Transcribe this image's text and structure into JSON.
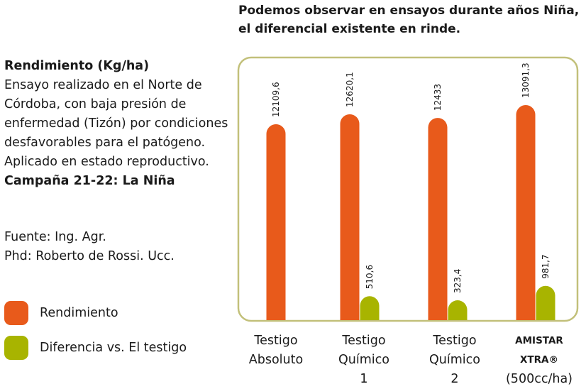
{
  "headline": [
    "Podemos observar en ensayos durante años Niña,",
    "el diferencial existente en rinde."
  ],
  "description": {
    "title": "Rendimiento (Kg/ha)",
    "body": [
      "Ensayo realizado en el Norte de",
      "Córdoba, con baja presión de",
      "enfermedad (Tizón) por condiciones",
      "desfavorables para el patógeno.",
      "Aplicado en estado reproductivo."
    ],
    "campaign": "Campaña 21-22: La Niña"
  },
  "source": [
    "Fuente: Ing. Agr.",
    "Phd: Roberto de Rossi. Ucc."
  ],
  "colors": {
    "rendimiento": "#e85a1b",
    "diferencia": "#a8b400",
    "frame": "#c2c07a"
  },
  "chart_data": {
    "type": "bar",
    "categories": [
      {
        "lines": [
          "Testigo",
          "Absoluto"
        ],
        "bold_first": false
      },
      {
        "lines": [
          "Testigo",
          "Químico",
          "1"
        ],
        "bold_first": false
      },
      {
        "lines": [
          "Testigo",
          "Químico",
          "2"
        ],
        "bold_first": false
      },
      {
        "lines": [
          "AMISTAR XTRA®",
          "(500cc/ha)"
        ],
        "bold_first": true
      }
    ],
    "series": [
      {
        "name": "Rendimiento",
        "values": [
          12109.6,
          12620.1,
          12433,
          13091.3
        ],
        "labels": [
          "12109,6",
          "12620,1",
          "12433",
          "13091,3"
        ]
      },
      {
        "name": "Diferencia vs. El testigo",
        "values": [
          null,
          510.6,
          323.4,
          981.7
        ],
        "labels": [
          "",
          "510,6",
          "323,4",
          "981,7"
        ]
      }
    ],
    "legend_position": "left"
  }
}
